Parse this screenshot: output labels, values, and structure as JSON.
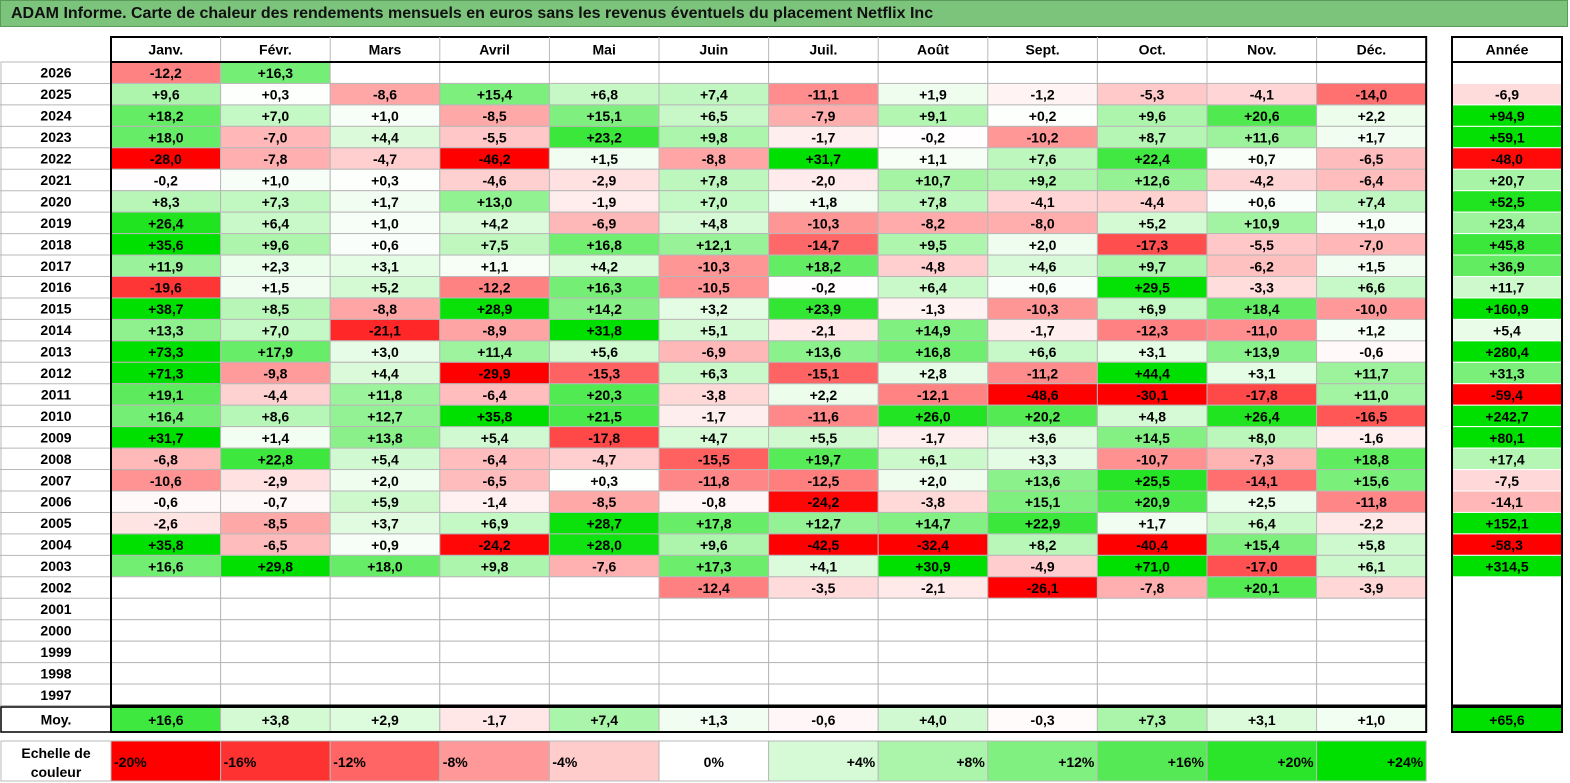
{
  "title": "ADAM Informe. Carte de chaleur des rendements mensuels en euros sans les revenus éventuels du placement Netflix Inc",
  "chart_data": {
    "type": "heatmap",
    "months": [
      "Janv.",
      "Févr.",
      "Mars",
      "Avril",
      "Mai",
      "Juin",
      "Juil.",
      "Août",
      "Sept.",
      "Oct.",
      "Nov.",
      "Déc."
    ],
    "year_header": "Année",
    "avg_label": "Moy.",
    "years": [
      "2026",
      "2025",
      "2024",
      "2023",
      "2022",
      "2021",
      "2020",
      "2019",
      "2018",
      "2017",
      "2016",
      "2015",
      "2014",
      "2013",
      "2012",
      "2011",
      "2010",
      "2009",
      "2008",
      "2007",
      "2006",
      "2005",
      "2004",
      "2003",
      "2002",
      "2001",
      "2000",
      "1999",
      "1998",
      "1997"
    ],
    "values": [
      [
        -12.2,
        16.3,
        null,
        null,
        null,
        null,
        null,
        null,
        null,
        null,
        null,
        null
      ],
      [
        9.6,
        0.3,
        -8.6,
        15.4,
        6.8,
        7.4,
        -11.1,
        1.9,
        -1.2,
        -5.3,
        -4.1,
        -14.0
      ],
      [
        18.2,
        7.0,
        1.0,
        -8.5,
        15.1,
        6.5,
        -7.9,
        9.1,
        0.2,
        9.6,
        20.6,
        2.2
      ],
      [
        18.0,
        -7.0,
        4.4,
        -5.5,
        23.2,
        9.8,
        -1.7,
        -0.2,
        -10.2,
        8.7,
        11.6,
        1.7
      ],
      [
        -28.0,
        -7.8,
        -4.7,
        -46.2,
        1.5,
        -8.8,
        31.7,
        1.1,
        7.6,
        22.4,
        0.7,
        -6.5
      ],
      [
        -0.2,
        1.0,
        0.3,
        -4.6,
        -2.9,
        7.8,
        -2.0,
        10.7,
        9.2,
        12.6,
        -4.2,
        -6.4
      ],
      [
        8.3,
        7.3,
        1.7,
        13.0,
        -1.9,
        7.0,
        1.8,
        7.8,
        -4.1,
        -4.4,
        0.6,
        7.4
      ],
      [
        26.4,
        6.4,
        1.0,
        4.2,
        -6.9,
        4.8,
        -10.3,
        -8.2,
        -8.0,
        5.2,
        10.9,
        1.0
      ],
      [
        35.6,
        9.6,
        0.6,
        7.5,
        16.8,
        12.1,
        -14.7,
        9.5,
        2.0,
        -17.3,
        -5.5,
        -7.0
      ],
      [
        11.9,
        2.3,
        3.1,
        1.1,
        4.2,
        -10.3,
        18.2,
        -4.8,
        4.6,
        9.7,
        -6.2,
        1.5
      ],
      [
        -19.6,
        1.5,
        5.2,
        -12.2,
        16.3,
        -10.5,
        -0.2,
        6.4,
        0.6,
        29.5,
        -3.3,
        6.6
      ],
      [
        38.7,
        8.5,
        -8.8,
        28.9,
        14.2,
        3.2,
        23.9,
        -1.3,
        -10.3,
        6.9,
        18.4,
        -10.0
      ],
      [
        13.3,
        7.0,
        -21.1,
        -8.9,
        31.8,
        5.1,
        -2.1,
        14.9,
        -1.7,
        -12.3,
        -11.0,
        1.2
      ],
      [
        73.3,
        17.9,
        3.0,
        11.4,
        5.6,
        -6.9,
        13.6,
        16.8,
        6.6,
        3.1,
        13.9,
        -0.6
      ],
      [
        71.3,
        -9.8,
        4.4,
        -29.9,
        -15.3,
        6.3,
        -15.1,
        2.8,
        -11.2,
        44.4,
        3.1,
        11.7
      ],
      [
        19.1,
        -4.4,
        11.8,
        -6.4,
        20.3,
        -3.8,
        2.2,
        -12.1,
        -48.6,
        -30.1,
        -17.8,
        11.0
      ],
      [
        16.4,
        8.6,
        12.7,
        35.8,
        21.5,
        -1.7,
        -11.6,
        26.0,
        20.2,
        4.8,
        26.4,
        -16.5
      ],
      [
        31.7,
        1.4,
        13.8,
        5.4,
        -17.8,
        4.7,
        5.5,
        -1.7,
        3.6,
        14.5,
        8.0,
        -1.6
      ],
      [
        -6.8,
        22.8,
        5.4,
        -6.4,
        -4.7,
        -15.5,
        19.7,
        6.1,
        3.3,
        -10.7,
        -7.3,
        18.8
      ],
      [
        -10.6,
        -2.9,
        2.0,
        -6.5,
        0.3,
        -11.8,
        -12.5,
        2.0,
        13.6,
        25.5,
        -14.1,
        15.6
      ],
      [
        -0.6,
        -0.7,
        5.9,
        -1.4,
        -8.5,
        -0.8,
        -24.2,
        -3.8,
        15.1,
        20.9,
        2.5,
        -11.8
      ],
      [
        -2.6,
        -8.5,
        3.7,
        6.9,
        28.7,
        17.8,
        12.7,
        14.7,
        22.9,
        1.7,
        6.4,
        -2.2
      ],
      [
        35.8,
        -6.5,
        0.9,
        -24.2,
        28.0,
        9.6,
        -42.5,
        -32.4,
        8.2,
        -40.4,
        15.4,
        5.8
      ],
      [
        16.6,
        29.8,
        18.0,
        9.8,
        -7.6,
        17.3,
        4.1,
        30.9,
        -4.9,
        71.0,
        -17.0,
        6.1
      ],
      [
        null,
        null,
        null,
        null,
        null,
        -12.4,
        -3.5,
        -2.1,
        -26.1,
        -7.8,
        20.1,
        -3.9
      ],
      [
        null,
        null,
        null,
        null,
        null,
        null,
        null,
        null,
        null,
        null,
        null,
        null
      ],
      [
        null,
        null,
        null,
        null,
        null,
        null,
        null,
        null,
        null,
        null,
        null,
        null
      ],
      [
        null,
        null,
        null,
        null,
        null,
        null,
        null,
        null,
        null,
        null,
        null,
        null
      ],
      [
        null,
        null,
        null,
        null,
        null,
        null,
        null,
        null,
        null,
        null,
        null,
        null
      ],
      [
        null,
        null,
        null,
        null,
        null,
        null,
        null,
        null,
        null,
        null,
        null,
        null
      ]
    ],
    "annual": [
      null,
      -6.9,
      94.9,
      59.1,
      -48.0,
      20.7,
      52.5,
      23.4,
      45.8,
      36.9,
      11.7,
      160.9,
      5.4,
      280.4,
      31.3,
      -59.4,
      242.7,
      80.1,
      17.4,
      -7.5,
      -14.1,
      152.1,
      -58.3,
      314.5,
      null,
      null,
      null,
      null,
      null,
      null
    ],
    "averages": [
      16.6,
      3.8,
      2.9,
      -1.7,
      7.4,
      1.3,
      -0.6,
      4.0,
      -0.3,
      7.3,
      3.1,
      1.0
    ],
    "average_annual": 65.6,
    "scale_label": [
      "Echelle de",
      "couleur"
    ],
    "scale_values": [
      "-20%",
      "-16%",
      "-12%",
      "-8%",
      "-4%",
      "0%",
      "+4%",
      "+8%",
      "+12%",
      "+16%",
      "+20%",
      "+24%"
    ],
    "colors": {
      "negative": "#ff0000",
      "neutral": "#ffffff",
      "positive": "#00e000",
      "grid": "#b8b8b8",
      "frame": "#000000",
      "title_bg": "#7cc47c"
    }
  }
}
